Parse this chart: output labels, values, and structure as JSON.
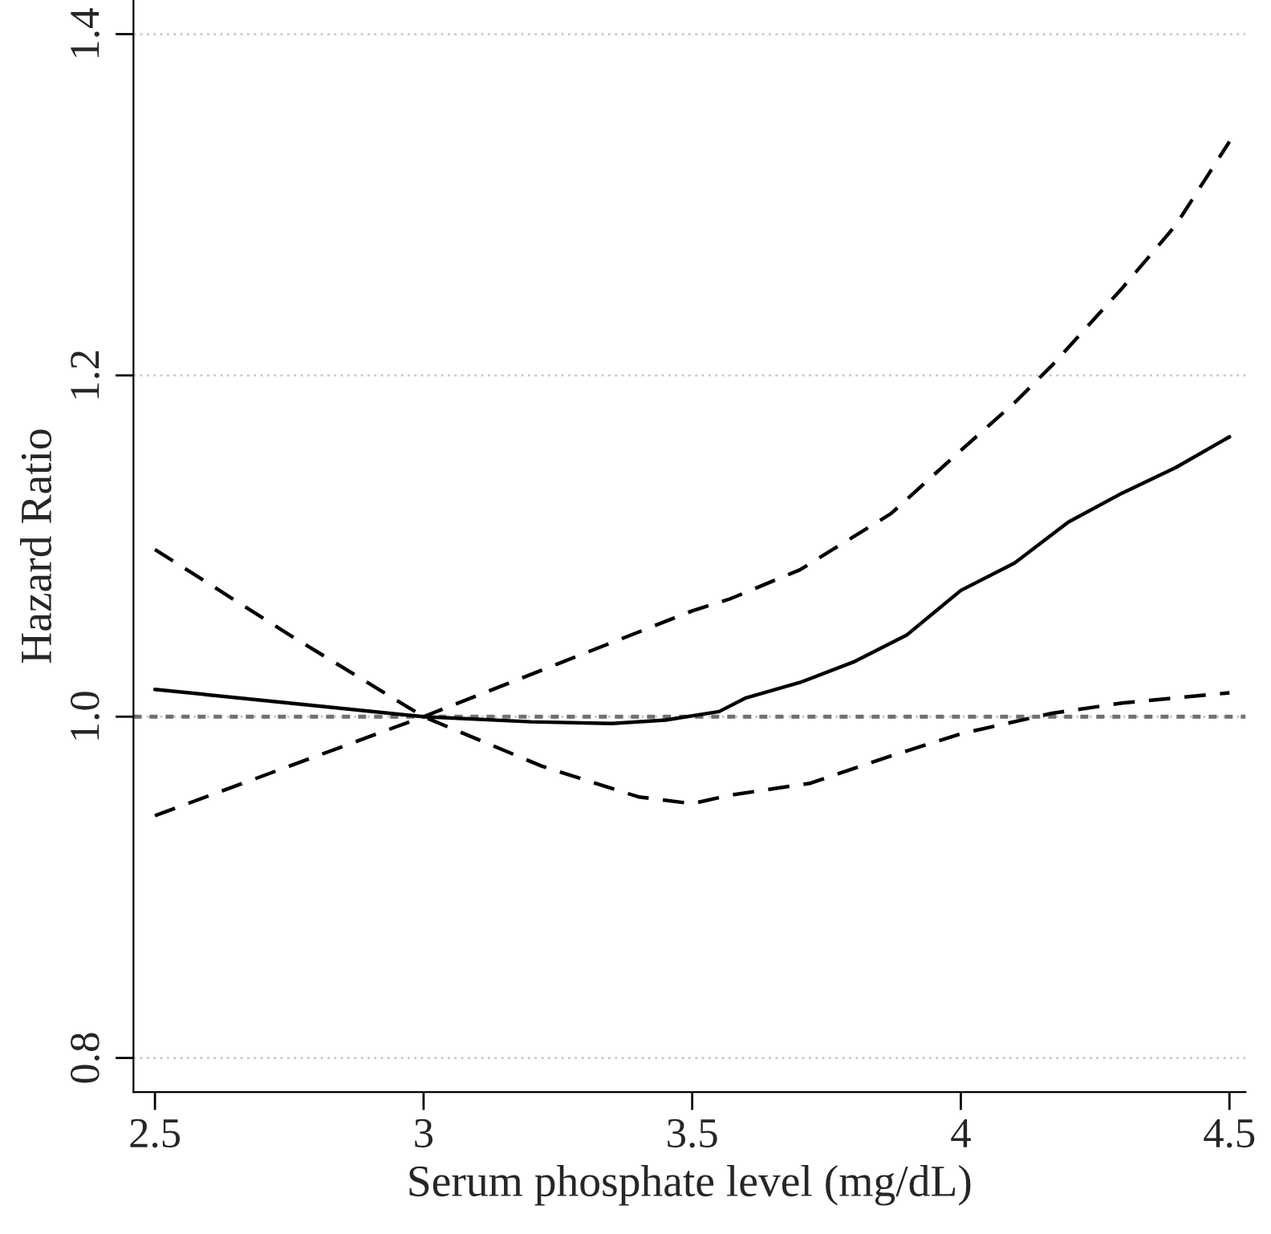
{
  "chart_data": {
    "type": "line",
    "xlabel": "Serum phosphate level (mg/dL)",
    "ylabel": "Hazard Ratio",
    "xlim": [
      2.46,
      4.53
    ],
    "ylim": [
      0.78,
      1.42
    ],
    "xticks": [
      2.5,
      3,
      3.5,
      4,
      4.5
    ],
    "yticks": [
      {
        "value": 0.8,
        "label": "0.8"
      },
      {
        "value": 1.0,
        "label": "1.0"
      },
      {
        "value": 1.2,
        "label": "1.2"
      },
      {
        "value": 1.4,
        "label": "1.4"
      }
    ],
    "grid": "y",
    "ref_lines": [
      {
        "axis": "y",
        "value": 1.0,
        "color": "#707070",
        "line_style": "dotted"
      }
    ],
    "series": [
      {
        "color": "#000000",
        "line_style": "solid",
        "x": [
          2.5,
          2.75,
          3.0,
          3.2,
          3.35,
          3.45,
          3.55,
          3.6,
          3.7,
          3.8,
          3.9,
          4.0,
          4.1,
          4.2,
          4.3,
          4.4,
          4.5
        ],
        "values": [
          1.016,
          1.008,
          1.0,
          0.997,
          0.996,
          0.998,
          1.003,
          1.011,
          1.02,
          1.032,
          1.048,
          1.074,
          1.09,
          1.114,
          1.131,
          1.146,
          1.164
        ]
      },
      {
        "color": "#000000",
        "line_style": "dashed",
        "x": [
          2.5,
          2.75,
          3.0,
          3.25,
          3.5,
          3.57,
          3.7,
          3.87,
          4.0,
          4.1,
          4.17,
          4.3,
          4.4,
          4.5
        ],
        "values": [
          0.942,
          0.971,
          1.0,
          1.031,
          1.062,
          1.069,
          1.086,
          1.119,
          1.156,
          1.184,
          1.206,
          1.251,
          1.288,
          1.337
        ]
      },
      {
        "color": "#000000",
        "line_style": "dashed",
        "x": [
          2.5,
          2.75,
          3.0,
          3.22,
          3.4,
          3.5,
          3.57,
          3.72,
          3.87,
          4.0,
          4.17,
          4.3,
          4.5
        ],
        "values": [
          1.098,
          1.048,
          1.0,
          0.971,
          0.953,
          0.949,
          0.954,
          0.961,
          0.977,
          0.99,
          1.002,
          1.008,
          1.014
        ]
      }
    ]
  }
}
